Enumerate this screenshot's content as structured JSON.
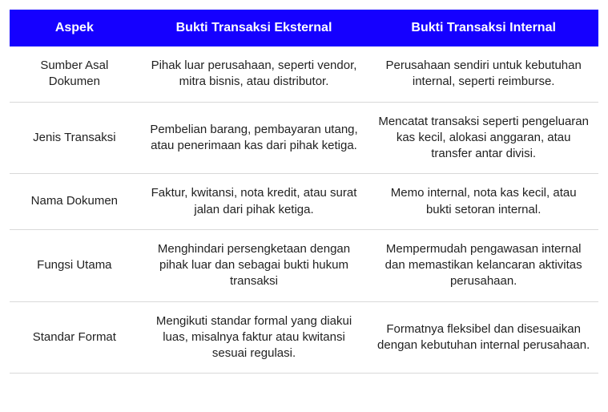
{
  "table": {
    "header_bg": "#1500ff",
    "header_fg": "#ffffff",
    "cell_fg": "#222222",
    "border_color": "#d9d9d9",
    "columns": [
      {
        "label": "Aspek",
        "width": "22%"
      },
      {
        "label": "Bukti Transaksi Eksternal",
        "width": "39%"
      },
      {
        "label": "Bukti Transaksi Internal",
        "width": "39%"
      }
    ],
    "rows": [
      {
        "aspek": "Sumber Asal Dokumen",
        "eksternal": "Pihak luar perusahaan, seperti vendor, mitra bisnis, atau distributor.",
        "internal": "Perusahaan sendiri untuk kebutuhan internal, seperti reimburse."
      },
      {
        "aspek": "Jenis Transaksi",
        "eksternal": "Pembelian barang, pembayaran utang, atau penerimaan kas dari pihak ketiga.",
        "internal": "Mencatat transaksi seperti pengeluaran kas kecil, alokasi anggaran, atau transfer antar divisi."
      },
      {
        "aspek": "Nama Dokumen",
        "eksternal": "Faktur, kwitansi, nota kredit, atau surat jalan dari pihak ketiga.",
        "internal": "Memo internal, nota kas kecil, atau bukti setoran internal."
      },
      {
        "aspek": "Fungsi Utama",
        "eksternal": "Menghindari persengketaan dengan pihak luar dan sebagai bukti hukum transaksi",
        "internal": "Mempermudah pengawasan internal dan memastikan kelancaran aktivitas perusahaan."
      },
      {
        "aspek": "Standar Format",
        "eksternal": "Mengikuti standar formal yang diakui luas, misalnya faktur atau kwitansi sesuai regulasi.",
        "internal": "Formatnya fleksibel dan disesuaikan dengan kebutuhan internal perusahaan."
      }
    ]
  }
}
